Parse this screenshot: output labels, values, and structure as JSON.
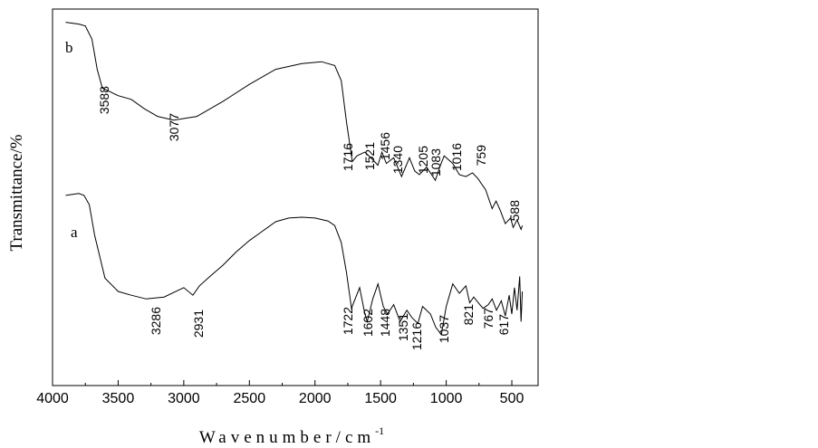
{
  "chart_data": {
    "type": "line",
    "xlabel": "Wavenumber/cm",
    "xlabel_superscript": "-1",
    "ylabel": "Transmittance/%",
    "xlim": [
      4000,
      300
    ],
    "x_reversed": true,
    "xticks": [
      4000,
      3500,
      3000,
      2500,
      2000,
      1500,
      1000,
      500
    ],
    "grid": false,
    "series": [
      {
        "name": "b",
        "x": [
          3900,
          3800,
          3750,
          3700,
          3660,
          3620,
          3588,
          3500,
          3400,
          3300,
          3200,
          3077,
          2900,
          2700,
          2500,
          2300,
          2100,
          1950,
          1850,
          1800,
          1760,
          1716,
          1680,
          1620,
          1560,
          1521,
          1490,
          1456,
          1400,
          1340,
          1280,
          1240,
          1205,
          1150,
          1083,
          1050,
          1016,
          950,
          900,
          850,
          800,
          759,
          700,
          650,
          620,
          588,
          550,
          510,
          490,
          460,
          430,
          420
        ],
        "y": [
          96.5,
          96.0,
          95.5,
          92.0,
          84.0,
          79.0,
          78.5,
          77.0,
          76.0,
          73.5,
          71.5,
          70.5,
          71.5,
          75.5,
          80.0,
          84.0,
          85.5,
          86.0,
          85.0,
          81.0,
          70.0,
          59.5,
          61.0,
          62.0,
          60.0,
          58.5,
          62.0,
          59.0,
          60.5,
          55.5,
          60.5,
          57.0,
          56.0,
          58.0,
          54.5,
          58.0,
          61.0,
          59.0,
          56.0,
          55.5,
          56.5,
          55.0,
          52.0,
          47.0,
          49.0,
          46.5,
          43.0,
          44.5,
          42.0,
          44.0,
          41.5,
          42.5
        ]
      },
      {
        "name": "a",
        "x": [
          3900,
          3800,
          3760,
          3720,
          3680,
          3600,
          3500,
          3400,
          3286,
          3150,
          3000,
          2931,
          2880,
          2800,
          2700,
          2600,
          2500,
          2400,
          2300,
          2200,
          2100,
          2000,
          1900,
          1850,
          1800,
          1760,
          1722,
          1700,
          1660,
          1620,
          1602,
          1560,
          1520,
          1480,
          1448,
          1400,
          1351,
          1300,
          1260,
          1216,
          1180,
          1120,
          1080,
          1037,
          1000,
          950,
          900,
          850,
          821,
          790,
          767,
          720,
          680,
          650,
          617,
          580,
          550,
          520,
          500,
          480,
          460,
          440,
          430,
          420
        ],
        "y": [
          50.5,
          51.0,
          50.5,
          48.0,
          40.0,
          28.5,
          25.0,
          24.0,
          23.0,
          23.5,
          26.0,
          24.0,
          26.5,
          29.0,
          32.0,
          35.5,
          38.5,
          41.0,
          43.5,
          44.5,
          44.7,
          44.5,
          43.7,
          42.5,
          38.0,
          30.0,
          20.5,
          22.5,
          26.0,
          19.0,
          17.0,
          23.0,
          27.0,
          21.0,
          19.0,
          21.5,
          17.0,
          20.0,
          18.0,
          16.5,
          21.0,
          19.0,
          15.5,
          13.5,
          21.0,
          27.0,
          24.5,
          26.5,
          22.0,
          23.5,
          22.5,
          20.5,
          21.5,
          23.0,
          20.0,
          22.5,
          18.5,
          24.0,
          19.0,
          26.0,
          20.0,
          29.0,
          17.0,
          25.0
        ]
      }
    ],
    "curve_labels": [
      "b",
      "a"
    ],
    "peak_labels_b": [
      "3588",
      "3077",
      "1716",
      "1521",
      "1456",
      "1340",
      "1205",
      "1083",
      "1016",
      "759",
      "588"
    ],
    "peak_labels_a": [
      "3286",
      "2931",
      "1722",
      "1602",
      "1448",
      "1351",
      "1216",
      "1037",
      "821",
      "767",
      "617"
    ]
  }
}
